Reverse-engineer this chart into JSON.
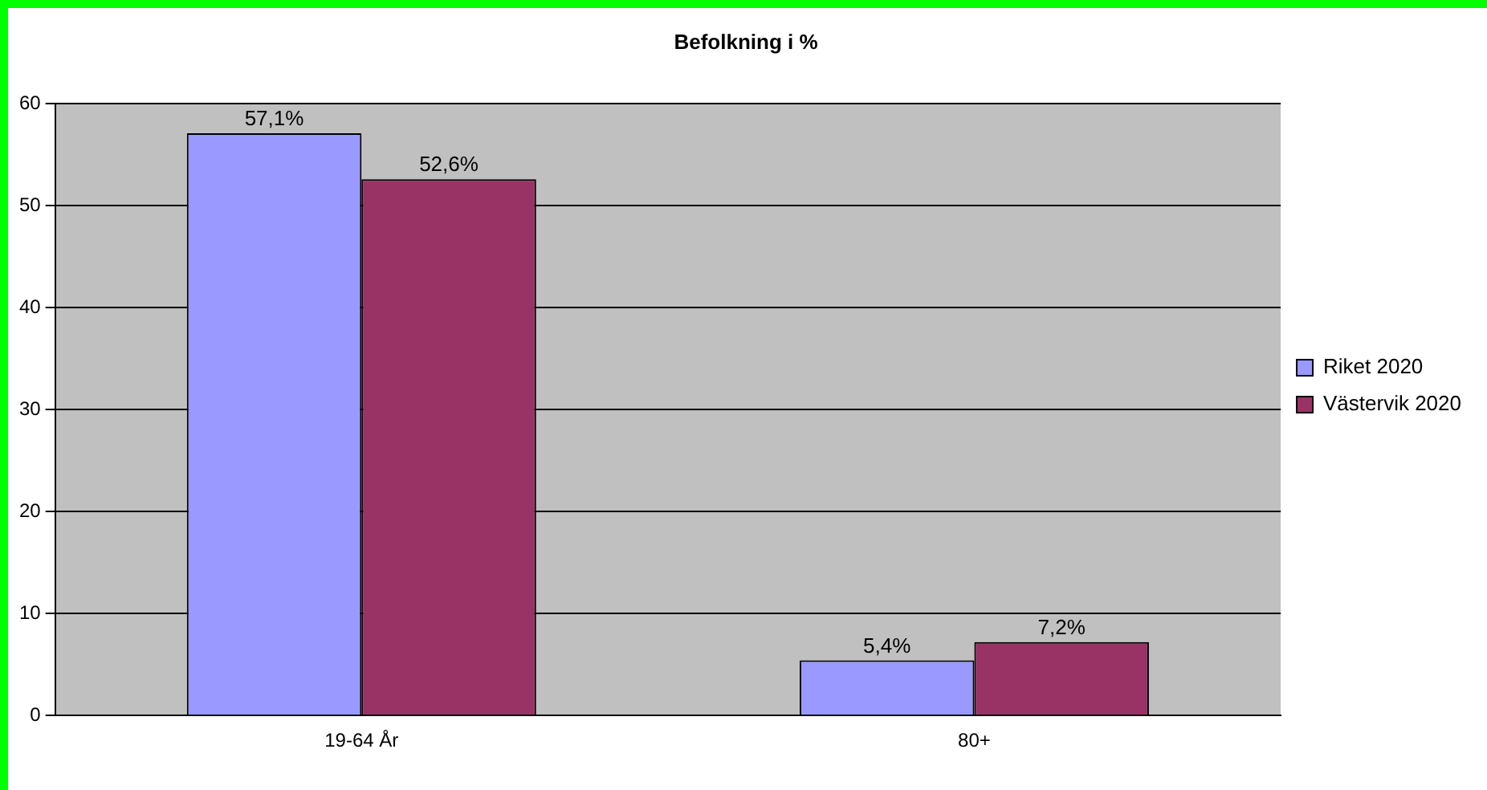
{
  "chart_data": {
    "type": "bar",
    "title": "Befolkning i %",
    "categories": [
      "19-64 År",
      "80+"
    ],
    "series": [
      {
        "name": "Riket 2020",
        "color": "#9999ff",
        "values": [
          57.1,
          5.4
        ],
        "value_labels": [
          "57,1%",
          "5,4%"
        ]
      },
      {
        "name": "Västervik 2020",
        "color": "#993366",
        "values": [
          52.6,
          7.2
        ],
        "value_labels": [
          "52,6%",
          "7,2%"
        ]
      }
    ],
    "ylim": [
      0,
      60
    ],
    "yticks": [
      0,
      10,
      20,
      30,
      40,
      50,
      60
    ],
    "grid": "y",
    "legend": "right"
  }
}
